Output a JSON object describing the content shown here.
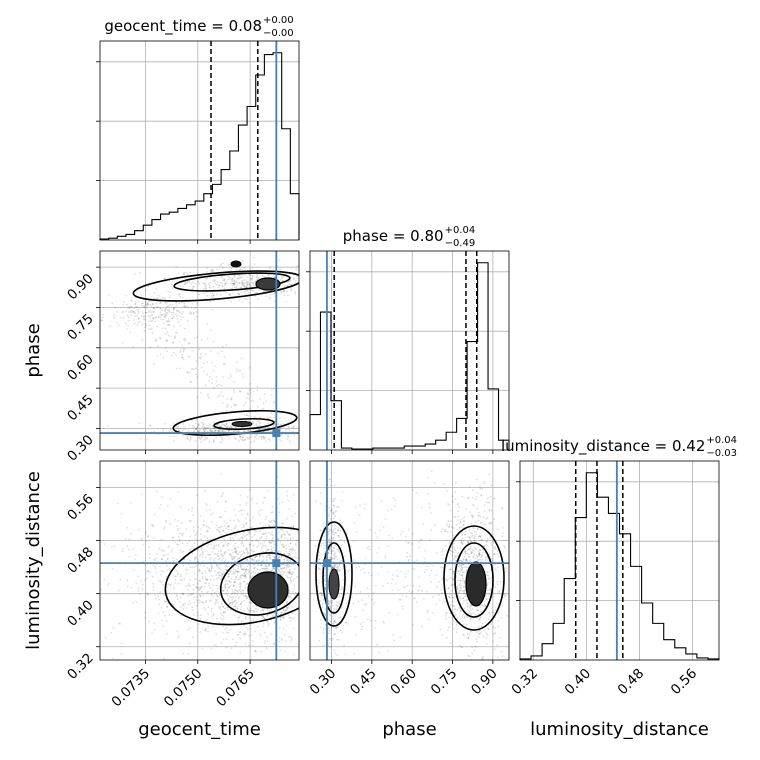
{
  "chart_data": {
    "type": "corner",
    "grid": true,
    "truth_color": "#4682b4",
    "parameters": [
      {
        "name": "geocent_time",
        "xlabel": "geocent_time",
        "ylabel": "",
        "title": "geocent_time = 0.08",
        "title_sup": "+0.00",
        "title_sub": "−0.00",
        "range": [
          0.0722,
          0.0779
        ],
        "ticks": [
          0.0735,
          0.075,
          0.0765
        ],
        "tick_labels": [
          "0.0735",
          "0.0750",
          "0.0765"
        ],
        "truth": 0.07725,
        "quantiles": [
          0.07538,
          0.07672,
          0.07725
        ],
        "hist": [
          0.5,
          1,
          2,
          3,
          5,
          8,
          11,
          14,
          15,
          17,
          19,
          21,
          25,
          30,
          38,
          48,
          62,
          72,
          89,
          100,
          101,
          60,
          25
        ]
      },
      {
        "name": "phase",
        "xlabel": "phase",
        "ylabel": "phase",
        "title": "phase = 0.80",
        "title_sup": "+0.04",
        "title_sub": "−0.49",
        "range": [
          0.22,
          0.96
        ],
        "ticks": [
          0.3,
          0.45,
          0.6,
          0.75,
          0.9
        ],
        "tick_labels": [
          "0.30",
          "0.45",
          "0.60",
          "0.75",
          "0.90"
        ],
        "truth": 0.283,
        "quantiles": [
          0.31,
          0.8,
          0.84
        ],
        "hist": [
          18,
          70,
          25,
          1,
          0.5,
          0.5,
          1,
          1,
          1,
          2,
          2,
          3,
          5,
          9,
          16,
          55,
          95,
          31,
          5
        ]
      },
      {
        "name": "luminosity_distance",
        "xlabel": "luminosity_distance",
        "ylabel": "luminosity_distance",
        "title": "luminosity_distance = 0.42",
        "title_sup": "+0.04",
        "title_sub": "−0.03",
        "range": [
          0.3,
          0.6
        ],
        "ticks": [
          0.32,
          0.4,
          0.48,
          0.56
        ],
        "tick_labels": [
          "0.32",
          "0.40",
          "0.48",
          "0.56"
        ],
        "truth": 0.446,
        "quantiles": [
          0.384,
          0.416,
          0.455
        ],
        "hist": [
          0.5,
          2,
          8,
          18,
          40,
          70,
          92,
          80,
          72,
          62,
          46,
          28,
          18,
          10,
          6,
          3,
          1,
          0.5
        ]
      }
    ],
    "map": {
      "ph_time": {
        "x": 0.07725,
        "y": 0.283
      },
      "ld_time": {
        "x": 0.07725,
        "y": 0.446
      },
      "ld_phase": {
        "x": 0.283,
        "y": 0.446
      }
    }
  }
}
